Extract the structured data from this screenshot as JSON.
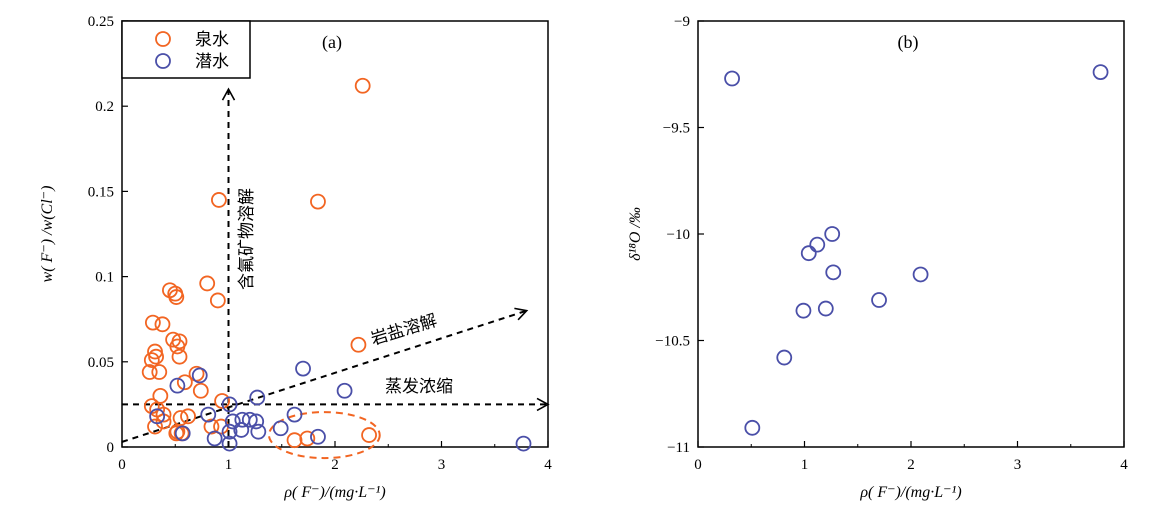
{
  "chart_data": [
    {
      "type": "scatter",
      "panel_label": "(a)",
      "xlabel": "ρ( F⁻)/(mg·L⁻¹)",
      "ylabel": "w( F⁻) /w(Cl⁻)",
      "xlim": [
        0,
        4
      ],
      "ylim": [
        0,
        0.25
      ],
      "xticks": [
        "0",
        "1",
        "2",
        "3",
        "4"
      ],
      "yticks": [
        "0",
        "0.05",
        "0.1",
        "0.15",
        "0.2",
        "0.25"
      ],
      "legend_position": "top-left",
      "series": [
        {
          "name": "泉水",
          "color": "#f26522",
          "points": [
            [
              2.26,
              0.212
            ],
            [
              0.91,
              0.145
            ],
            [
              1.84,
              0.144
            ],
            [
              0.8,
              0.096
            ],
            [
              0.9,
              0.086
            ],
            [
              0.45,
              0.092
            ],
            [
              0.5,
              0.09
            ],
            [
              0.51,
              0.088
            ],
            [
              0.29,
              0.073
            ],
            [
              0.38,
              0.072
            ],
            [
              0.48,
              0.063
            ],
            [
              0.54,
              0.062
            ],
            [
              0.52,
              0.059
            ],
            [
              2.22,
              0.06
            ],
            [
              0.31,
              0.056
            ],
            [
              0.32,
              0.053
            ],
            [
              0.28,
              0.051
            ],
            [
              0.54,
              0.053
            ],
            [
              0.35,
              0.044
            ],
            [
              0.26,
              0.044
            ],
            [
              0.7,
              0.043
            ],
            [
              0.59,
              0.038
            ],
            [
              0.74,
              0.033
            ],
            [
              0.36,
              0.03
            ],
            [
              0.94,
              0.027
            ],
            [
              0.28,
              0.024
            ],
            [
              0.33,
              0.022
            ],
            [
              0.39,
              0.019
            ],
            [
              0.55,
              0.017
            ],
            [
              0.62,
              0.018
            ],
            [
              0.39,
              0.015
            ],
            [
              0.31,
              0.012
            ],
            [
              0.84,
              0.012
            ],
            [
              0.93,
              0.012
            ],
            [
              0.52,
              0.009
            ],
            [
              0.56,
              0.008
            ],
            [
              0.51,
              0.008
            ],
            [
              1.62,
              0.004
            ],
            [
              1.74,
              0.005
            ],
            [
              2.32,
              0.007
            ]
          ]
        },
        {
          "name": "潜水",
          "color": "#4a4fa8",
          "points": [
            [
              1.7,
              0.046
            ],
            [
              2.09,
              0.033
            ],
            [
              1.27,
              0.029
            ],
            [
              0.52,
              0.036
            ],
            [
              0.73,
              0.042
            ],
            [
              0.81,
              0.019
            ],
            [
              1.01,
              0.025
            ],
            [
              1.62,
              0.019
            ],
            [
              0.33,
              0.018
            ],
            [
              1.49,
              0.011
            ],
            [
              1.04,
              0.015
            ],
            [
              1.13,
              0.016
            ],
            [
              1.2,
              0.016
            ],
            [
              1.26,
              0.015
            ],
            [
              1.12,
              0.01
            ],
            [
              1.01,
              0.009
            ],
            [
              1.28,
              0.009
            ],
            [
              0.57,
              0.008
            ],
            [
              0.87,
              0.005
            ],
            [
              1.01,
              0.002
            ],
            [
              1.84,
              0.006
            ],
            [
              3.77,
              0.002
            ]
          ]
        }
      ],
      "annotations": [
        {
          "text": "含氟矿物溶解",
          "from": [
            1.0,
            0
          ],
          "to": [
            1.0,
            0.21
          ]
        },
        {
          "text": "岩盐溶解",
          "from": [
            0,
            0.003
          ],
          "to": [
            3.8,
            0.08
          ]
        },
        {
          "text": "蒸发浓缩",
          "from": [
            0,
            0.025
          ],
          "to": [
            4.0,
            0.025
          ]
        }
      ],
      "ellipse": {
        "center": [
          1.9,
          0.007
        ],
        "radii": [
          0.52,
          0.0135
        ],
        "color": "#f26522"
      }
    },
    {
      "type": "scatter",
      "panel_label": "(b)",
      "xlabel": "ρ( F⁻)/(mg·L⁻¹)",
      "ylabel": "δ¹⁸O /‰",
      "xlim": [
        0,
        4
      ],
      "ylim": [
        -11,
        -9
      ],
      "xticks": [
        "0",
        "1",
        "2",
        "3",
        "4"
      ],
      "yticks": [
        "−11",
        "−10.5",
        "−10",
        "−9.5",
        "−9"
      ],
      "series": [
        {
          "name": "潜水",
          "color": "#4a4fa8",
          "points": [
            [
              0.32,
              -9.27
            ],
            [
              3.78,
              -9.24
            ],
            [
              1.26,
              -10.0
            ],
            [
              1.12,
              -10.05
            ],
            [
              1.04,
              -10.09
            ],
            [
              1.27,
              -10.18
            ],
            [
              2.09,
              -10.19
            ],
            [
              1.7,
              -10.31
            ],
            [
              1.2,
              -10.35
            ],
            [
              0.99,
              -10.36
            ],
            [
              0.81,
              -10.58
            ],
            [
              0.51,
              -10.91
            ]
          ]
        }
      ]
    }
  ]
}
